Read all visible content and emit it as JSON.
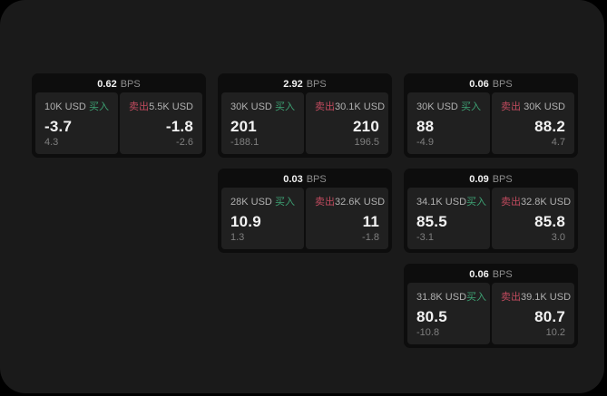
{
  "colors": {
    "background": "#000000",
    "panel_bg": "#1a1a1a",
    "card_bg": "#0d0d0d",
    "pane_bg": "#202020",
    "buy_green": "#3da173",
    "sell_red": "#c04a5e",
    "value_white": "#f2f2f2",
    "label_gray": "#b0b0b0",
    "muted_gray": "#7f7f7f",
    "unit_gray": "#8f8f8f"
  },
  "cards": [
    {
      "bps_value": "0.62",
      "bps_unit": "BPS",
      "buy": {
        "size": "10K USD",
        "label": "买入",
        "price": "-3.7",
        "delta": "4.3"
      },
      "sell": {
        "label": "卖出",
        "size": "5.5K USD",
        "price": "-1.8",
        "delta": "-2.6"
      }
    },
    {
      "bps_value": "2.92",
      "bps_unit": "BPS",
      "buy": {
        "size": "30K USD",
        "label": "买入",
        "price": "201",
        "delta": "-188.1"
      },
      "sell": {
        "label": "卖出",
        "size": "30.1K USD",
        "price": "210",
        "delta": "196.5"
      }
    },
    {
      "bps_value": "0.06",
      "bps_unit": "BPS",
      "buy": {
        "size": "30K USD",
        "label": "买入",
        "price": "88",
        "delta": "-4.9"
      },
      "sell": {
        "label": "卖出",
        "size": "30K USD",
        "price": "88.2",
        "delta": "4.7"
      }
    },
    {
      "bps_value": "0.03",
      "bps_unit": "BPS",
      "buy": {
        "size": "28K USD",
        "label": "买入",
        "price": "10.9",
        "delta": "1.3"
      },
      "sell": {
        "label": "卖出",
        "size": "32.6K USD",
        "price": "11",
        "delta": "-1.8"
      }
    },
    {
      "bps_value": "0.09",
      "bps_unit": "BPS",
      "buy": {
        "size": "34.1K USD",
        "label": "买入",
        "price": "85.5",
        "delta": "-3.1"
      },
      "sell": {
        "label": "卖出",
        "size": "32.8K USD",
        "price": "85.8",
        "delta": "3.0"
      }
    },
    {
      "bps_value": "0.06",
      "bps_unit": "BPS",
      "buy": {
        "size": "31.8K USD",
        "label": "买入",
        "price": "80.5",
        "delta": "-10.8"
      },
      "sell": {
        "label": "卖出",
        "size": "39.1K USD",
        "price": "80.7",
        "delta": "10.2"
      }
    }
  ]
}
